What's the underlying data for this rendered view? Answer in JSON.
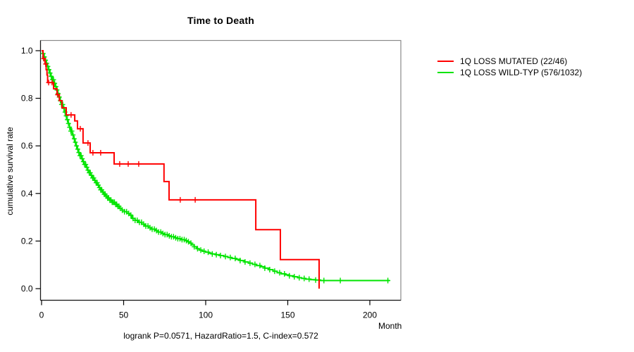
{
  "title": "Time to Death",
  "footer": "logrank P=0.0571, HazardRatio=1.5, C-index=0.572",
  "axes": {
    "x_label": "Month",
    "y_label": "cumulative survival rate",
    "x_ticks": [
      "0",
      "50",
      "100",
      "150",
      "200"
    ],
    "y_ticks": [
      "0.0",
      "0.2",
      "0.4",
      "0.6",
      "0.8",
      "1.0"
    ]
  },
  "legend": {
    "items": [
      {
        "label": "1Q LOSS MUTATED (22/46)",
        "color": "#ff0000"
      },
      {
        "label": "1Q LOSS WILD-TYP (576/1032)",
        "color": "#00e400"
      }
    ]
  },
  "chart_data": {
    "type": "line",
    "subtype": "kaplan_meier_step",
    "title": "Time to Death",
    "xlabel": "Month",
    "ylabel": "cumulative survival rate",
    "xlim": [
      0,
      220
    ],
    "ylim": [
      0.0,
      1.0
    ],
    "grid": false,
    "legend_position": "outside-top-right",
    "annotation": "logrank P=0.0571, HazardRatio=1.5, C-index=0.572",
    "series": [
      {
        "name": "1Q LOSS MUTATED (22/46)",
        "color": "#ff0000",
        "events_total": "22/46",
        "step_points": [
          [
            0,
            1.0
          ],
          [
            0.9,
            0.967
          ],
          [
            2.1,
            0.944
          ],
          [
            2.8,
            0.92
          ],
          [
            3.3,
            0.898
          ],
          [
            3.7,
            0.866
          ],
          [
            7.3,
            0.84
          ],
          [
            9.4,
            0.815
          ],
          [
            10.8,
            0.79
          ],
          [
            12.4,
            0.76
          ],
          [
            15.0,
            0.73
          ],
          [
            20.2,
            0.705
          ],
          [
            21.9,
            0.672
          ],
          [
            25.3,
            0.612
          ],
          [
            29.6,
            0.571
          ],
          [
            44.2,
            0.524
          ],
          [
            74.6,
            0.45
          ],
          [
            77.7,
            0.373
          ],
          [
            130.5,
            0.248
          ],
          [
            145.5,
            0.122
          ],
          [
            169.1,
            0.0
          ]
        ],
        "censor_months": [
          1.3,
          2.5,
          4.3,
          6.4,
          9.8,
          18.0,
          23.6,
          28.3,
          31.3,
          36.0,
          47.6,
          52.8,
          59.2,
          84.5,
          93.6
        ]
      },
      {
        "name": "1Q LOSS WILD-TYP (576/1032)",
        "color": "#00e400",
        "events_total": "576/1032",
        "step_points": [
          [
            0,
            1.0
          ],
          [
            0.7,
            0.988
          ],
          [
            1.4,
            0.974
          ],
          [
            2.1,
            0.96
          ],
          [
            2.8,
            0.947
          ],
          [
            3.5,
            0.934
          ],
          [
            4.2,
            0.92
          ],
          [
            5.0,
            0.906
          ],
          [
            5.8,
            0.892
          ],
          [
            6.6,
            0.878
          ],
          [
            7.4,
            0.863
          ],
          [
            8.2,
            0.849
          ],
          [
            9.0,
            0.835
          ],
          [
            9.8,
            0.82
          ],
          [
            10.6,
            0.805
          ],
          [
            11.4,
            0.79
          ],
          [
            12.2,
            0.774
          ],
          [
            13.0,
            0.758
          ],
          [
            13.8,
            0.742
          ],
          [
            14.6,
            0.726
          ],
          [
            15.4,
            0.71
          ],
          [
            16.2,
            0.694
          ],
          [
            17.0,
            0.678
          ],
          [
            17.8,
            0.662
          ],
          [
            18.6,
            0.646
          ],
          [
            19.4,
            0.63
          ],
          [
            20.2,
            0.615
          ],
          [
            21.0,
            0.6
          ],
          [
            21.8,
            0.586
          ],
          [
            22.6,
            0.572
          ],
          [
            23.4,
            0.559
          ],
          [
            24.2,
            0.546
          ],
          [
            25.0,
            0.534
          ],
          [
            26.0,
            0.522
          ],
          [
            27.0,
            0.51
          ],
          [
            28.0,
            0.498
          ],
          [
            29.0,
            0.487
          ],
          [
            30.0,
            0.476
          ],
          [
            31.0,
            0.465
          ],
          [
            32.0,
            0.455
          ],
          [
            33.0,
            0.445
          ],
          [
            34.0,
            0.435
          ],
          [
            35.0,
            0.425
          ],
          [
            36.0,
            0.415
          ],
          [
            37.0,
            0.406
          ],
          [
            38.0,
            0.397
          ],
          [
            39.0,
            0.389
          ],
          [
            40.0,
            0.381
          ],
          [
            41.5,
            0.372
          ],
          [
            43.0,
            0.363
          ],
          [
            44.5,
            0.354
          ],
          [
            46.0,
            0.346
          ],
          [
            47.5,
            0.338
          ],
          [
            49.0,
            0.33
          ],
          [
            50.5,
            0.323
          ],
          [
            52.0,
            0.316
          ],
          [
            53.5,
            0.309
          ],
          [
            55.0,
            0.295
          ],
          [
            57.0,
            0.287
          ],
          [
            59.0,
            0.279
          ],
          [
            61.0,
            0.271
          ],
          [
            63.0,
            0.263
          ],
          [
            65.0,
            0.256
          ],
          [
            67.0,
            0.25
          ],
          [
            69.0,
            0.244
          ],
          [
            71.0,
            0.238
          ],
          [
            73.0,
            0.232
          ],
          [
            75.0,
            0.227
          ],
          [
            77.0,
            0.222
          ],
          [
            79.0,
            0.218
          ],
          [
            81.0,
            0.214
          ],
          [
            83.0,
            0.21
          ],
          [
            85.0,
            0.206
          ],
          [
            87.0,
            0.202
          ],
          [
            88.5,
            0.197
          ],
          [
            90.0,
            0.191
          ],
          [
            91.5,
            0.184
          ],
          [
            93.0,
            0.176
          ],
          [
            94.5,
            0.168
          ],
          [
            96.0,
            0.162
          ],
          [
            98.0,
            0.157
          ],
          [
            100,
            0.153
          ],
          [
            102,
            0.149
          ],
          [
            104,
            0.146
          ],
          [
            106,
            0.143
          ],
          [
            108.5,
            0.139
          ],
          [
            111,
            0.135
          ],
          [
            113.5,
            0.131
          ],
          [
            116,
            0.127
          ],
          [
            118.5,
            0.123
          ],
          [
            121,
            0.118
          ],
          [
            123.5,
            0.112
          ],
          [
            126,
            0.107
          ],
          [
            128.5,
            0.102
          ],
          [
            131,
            0.097
          ],
          [
            133.5,
            0.092
          ],
          [
            136,
            0.086
          ],
          [
            138.5,
            0.08
          ],
          [
            141,
            0.073
          ],
          [
            143.5,
            0.067
          ],
          [
            146,
            0.062
          ],
          [
            148.5,
            0.058
          ],
          [
            151,
            0.054
          ],
          [
            153.5,
            0.05
          ],
          [
            156,
            0.046
          ],
          [
            158.5,
            0.043
          ],
          [
            161,
            0.04
          ],
          [
            164,
            0.038
          ],
          [
            167,
            0.036
          ],
          [
            170,
            0.034
          ],
          [
            212,
            0.034
          ]
        ],
        "censor_months": [
          1.0,
          1.7,
          2.4,
          3.1,
          3.8,
          4.5,
          5.2,
          5.9,
          6.6,
          7.3,
          8.0,
          8.7,
          9.4,
          10.1,
          10.8,
          11.5,
          12.2,
          12.9,
          13.6,
          14.3,
          15.0,
          15.7,
          16.4,
          17.1,
          17.8,
          18.5,
          19.2,
          19.9,
          20.6,
          21.3,
          22.0,
          22.7,
          23.4,
          24.1,
          24.8,
          25.5,
          26.2,
          26.9,
          27.6,
          28.3,
          29.0,
          29.7,
          30.4,
          31.1,
          31.8,
          32.5,
          33.2,
          33.9,
          34.6,
          35.3,
          36.0,
          36.7,
          37.4,
          38.1,
          38.8,
          39.5,
          40.2,
          40.9,
          41.6,
          42.3,
          43.0,
          43.7,
          44.4,
          45.1,
          45.8,
          46.5,
          47.2,
          47.9,
          49.2,
          50.5,
          51.8,
          53.1,
          54.4,
          55.7,
          57.0,
          58.3,
          59.6,
          60.9,
          62.2,
          63.5,
          64.8,
          66.1,
          67.4,
          68.7,
          70.0,
          71.3,
          72.6,
          73.9,
          75.2,
          76.5,
          77.8,
          79.1,
          80.4,
          81.7,
          83.0,
          84.3,
          85.6,
          86.9,
          88.2,
          89.5,
          91.0,
          93.0,
          95.0,
          97.0,
          99.0,
          101.5,
          104.0,
          106.5,
          109.0,
          112.0,
          115.0,
          118.0,
          121.0,
          124.0,
          127.0,
          130.0,
          133.0,
          136.0,
          139.0,
          142.0,
          145.0,
          148.0,
          151.0,
          154.0,
          157.0,
          160.0,
          163.0,
          167.0,
          172.0,
          182.0,
          211.0
        ]
      }
    ]
  }
}
